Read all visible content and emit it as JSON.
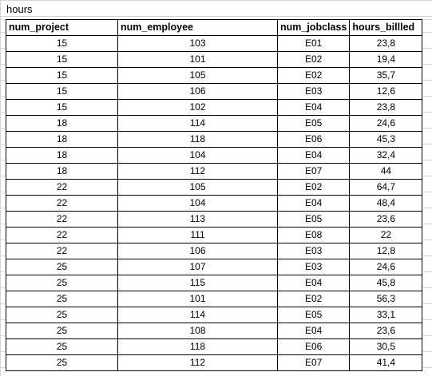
{
  "sheet": {
    "title": "hours"
  },
  "table": {
    "headers": [
      "num_project",
      "num_employee",
      "num_jobclass",
      "hours_billled"
    ],
    "rows": [
      [
        "15",
        "103",
        "E01",
        "23,8"
      ],
      [
        "15",
        "101",
        "E02",
        "19,4"
      ],
      [
        "15",
        "105",
        "E02",
        "35,7"
      ],
      [
        "15",
        "106",
        "E03",
        "12,6"
      ],
      [
        "15",
        "102",
        "E04",
        "23,8"
      ],
      [
        "18",
        "114",
        "E05",
        "24,6"
      ],
      [
        "18",
        "118",
        "E06",
        "45,3"
      ],
      [
        "18",
        "104",
        "E04",
        "32,4"
      ],
      [
        "18",
        "112",
        "E07",
        "44"
      ],
      [
        "22",
        "105",
        "E02",
        "64,7"
      ],
      [
        "22",
        "104",
        "E04",
        "48,4"
      ],
      [
        "22",
        "113",
        "E05",
        "23,6"
      ],
      [
        "22",
        "111",
        "E08",
        "22"
      ],
      [
        "22",
        "106",
        "E03",
        "12,8"
      ],
      [
        "25",
        "107",
        "E03",
        "24,6"
      ],
      [
        "25",
        "115",
        "E04",
        "45,8"
      ],
      [
        "25",
        "101",
        "E02",
        "56,3"
      ],
      [
        "25",
        "114",
        "E05",
        "33,1"
      ],
      [
        "25",
        "108",
        "E04",
        "23,6"
      ],
      [
        "25",
        "118",
        "E06",
        "30,5"
      ],
      [
        "25",
        "112",
        "E07",
        "41,4"
      ]
    ]
  }
}
